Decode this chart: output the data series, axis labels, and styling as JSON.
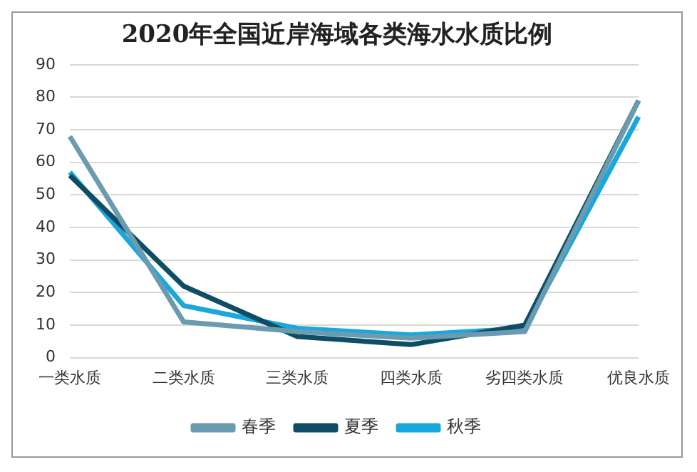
{
  "chart_data": {
    "type": "line",
    "title": "2020年全国近岸海域各类海水水质比例",
    "categories": [
      "一类水质",
      "二类水质",
      "三类水质",
      "四类水质",
      "劣四类水质",
      "优良水质"
    ],
    "series": [
      {
        "name": "春季",
        "color": "#6a9bb0",
        "values": [
          68,
          11,
          8,
          6,
          8,
          79
        ]
      },
      {
        "name": "夏季",
        "color": "#0e4d64",
        "values": [
          56,
          22,
          6.5,
          4,
          10,
          79
        ]
      },
      {
        "name": "秋季",
        "color": "#1aa7dc",
        "values": [
          57,
          16,
          9,
          7,
          9,
          74
        ]
      }
    ],
    "ylim": [
      0,
      90
    ],
    "yticks": [
      0,
      10,
      20,
      30,
      40,
      50,
      60,
      70,
      80,
      90
    ],
    "grid": "y",
    "legend": "bottom",
    "marker": "none",
    "line_style": "solid"
  }
}
